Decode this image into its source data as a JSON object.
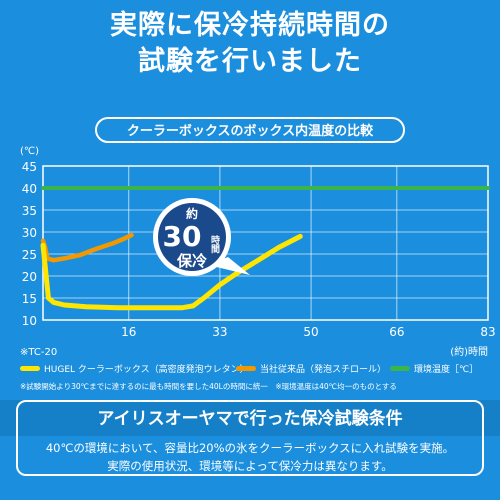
{
  "headline": {
    "line1": "実際に保冷持続時間の",
    "line2": "試験を行いました"
  },
  "chart_title": "クーラーボックスのボックス内温度の比較",
  "chart_data": {
    "type": "line",
    "ylabel": "(℃)",
    "xlabel": "(約)時間",
    "xlim": [
      0,
      83
    ],
    "ylim": [
      10,
      45
    ],
    "xticks": [
      16,
      33,
      50,
      66,
      83
    ],
    "yticks": [
      10,
      15,
      20,
      25,
      30,
      35,
      40,
      45
    ],
    "grid": true,
    "corner_label": "※TC-20",
    "callout": {
      "prefix": "約",
      "hours": "30",
      "unit": "時間",
      "suffix": "保冷"
    },
    "series": [
      {
        "name": "HUGEL クーラーボックス（高密度発泡ウレタン）",
        "color": "#ffe600",
        "points": [
          [
            0,
            27
          ],
          [
            0.5,
            21
          ],
          [
            1,
            15
          ],
          [
            2,
            14
          ],
          [
            4,
            13.4
          ],
          [
            8,
            13
          ],
          [
            14,
            12.8
          ],
          [
            20,
            12.8
          ],
          [
            26,
            12.8
          ],
          [
            28,
            13.2
          ],
          [
            30,
            15
          ],
          [
            33,
            18
          ],
          [
            36,
            20.5
          ],
          [
            40,
            23.5
          ],
          [
            44,
            26.5
          ],
          [
            48,
            29
          ]
        ]
      },
      {
        "name": "当社従来品（発泡スチロール）",
        "color": "#f39800",
        "points": [
          [
            0,
            28
          ],
          [
            0.4,
            26.5
          ],
          [
            0.8,
            24
          ],
          [
            2,
            23.6
          ],
          [
            4,
            24
          ],
          [
            7,
            24.8
          ],
          [
            10,
            26.2
          ],
          [
            13,
            27.4
          ],
          [
            15,
            28.4
          ],
          [
            16.5,
            29.3
          ]
        ]
      },
      {
        "name": "環境温度［℃］",
        "color": "#3ab54a",
        "points": [
          [
            0,
            40
          ],
          [
            83,
            40
          ]
        ]
      }
    ]
  },
  "note": "※試験開始より30℃までに達するのに最も時間を要した40Lの時間に統一　※環境温度は40℃均一のものとする",
  "conditions": {
    "title": "アイリスオーヤマで行った保冷試験条件",
    "line1": "40℃の環境において、容量比20%の氷をクーラーボックスに入れ試験を実施。",
    "line2": "実際の使用状況、環境等によって保冷力は異なります。"
  }
}
